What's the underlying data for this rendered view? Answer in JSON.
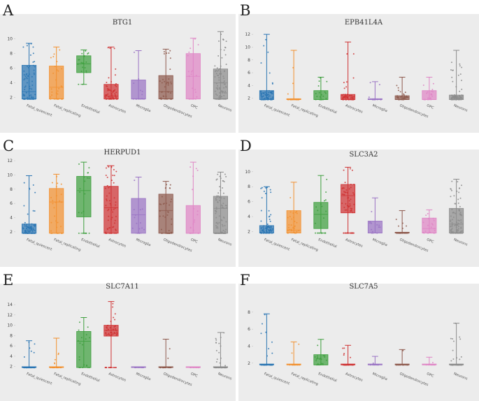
{
  "figure": {
    "background": "#ffffff",
    "panel_background": "#ececec"
  },
  "categories": [
    "Fetal_quiescent",
    "Fetal_replicating",
    "Endothelial",
    "Astrocytes",
    "Microglia",
    "Oligodendrocytes",
    "OPC",
    "Neurons"
  ],
  "colors": [
    "#2a75b3",
    "#f2902f",
    "#3e9f3e",
    "#cf3233",
    "#9a73c4",
    "#8e5a4e",
    "#df85c5",
    "#8c8c8c"
  ],
  "chart_data": [
    {
      "type": "box",
      "letter": "A",
      "title": "BTG1",
      "yticks": [
        2,
        4,
        6,
        8,
        10
      ],
      "ylim": [
        1.2,
        11.5
      ],
      "series": [
        {
          "name": "Fetal_quiescent",
          "min": 1.8,
          "q1": 1.8,
          "median": 2.8,
          "q3": 6.4,
          "max": 9.4,
          "n": 80
        },
        {
          "name": "Fetal_replicating",
          "min": 1.8,
          "q1": 1.8,
          "median": 3.4,
          "q3": 6.3,
          "max": 8.9,
          "n": 30
        },
        {
          "name": "Endothelial",
          "min": 3.8,
          "q1": 5.4,
          "median": 6.6,
          "q3": 7.7,
          "max": 8.5,
          "n": 20
        },
        {
          "name": "Astrocytes",
          "min": 1.8,
          "q1": 1.8,
          "median": 2.2,
          "q3": 3.8,
          "max": 8.9,
          "n": 60
        },
        {
          "name": "Microglia",
          "min": 1.8,
          "q1": 1.8,
          "median": 1.8,
          "q3": 4.4,
          "max": 8.4,
          "n": 14
        },
        {
          "name": "Oligodendrocytes",
          "min": 1.8,
          "q1": 1.8,
          "median": 2.8,
          "q3": 5.0,
          "max": 8.6,
          "n": 40
        },
        {
          "name": "OPC",
          "min": 1.8,
          "q1": 1.8,
          "median": 4.9,
          "q3": 8.0,
          "max": 10.1,
          "n": 20
        },
        {
          "name": "Neurons",
          "min": 1.8,
          "q1": 1.8,
          "median": 4.0,
          "q3": 5.9,
          "max": 11.0,
          "n": 100
        }
      ]
    },
    {
      "type": "box",
      "letter": "B",
      "title": "EPB41L4A",
      "yticks": [
        2,
        4,
        6,
        8,
        10,
        12
      ],
      "ylim": [
        1.2,
        13.0
      ],
      "series": [
        {
          "name": "Fetal_quiescent",
          "min": 1.8,
          "q1": 1.8,
          "median": 1.8,
          "q3": 3.2,
          "max": 12.0,
          "n": 80
        },
        {
          "name": "Fetal_replicating",
          "min": 1.8,
          "q1": 1.8,
          "median": 1.8,
          "q3": 1.8,
          "max": 9.5,
          "n": 30
        },
        {
          "name": "Endothelial",
          "min": 1.8,
          "q1": 1.8,
          "median": 1.8,
          "q3": 3.2,
          "max": 5.3,
          "n": 20
        },
        {
          "name": "Astrocytes",
          "min": 1.8,
          "q1": 1.8,
          "median": 1.8,
          "q3": 2.6,
          "max": 10.8,
          "n": 60
        },
        {
          "name": "Microglia",
          "min": 1.8,
          "q1": 1.8,
          "median": 1.8,
          "q3": 1.8,
          "max": 4.6,
          "n": 14
        },
        {
          "name": "Oligodendrocytes",
          "min": 1.8,
          "q1": 1.8,
          "median": 1.8,
          "q3": 2.4,
          "max": 5.3,
          "n": 40
        },
        {
          "name": "OPC",
          "min": 1.8,
          "q1": 1.8,
          "median": 1.8,
          "q3": 3.2,
          "max": 5.3,
          "n": 20
        },
        {
          "name": "Neurons",
          "min": 1.8,
          "q1": 1.8,
          "median": 1.8,
          "q3": 2.5,
          "max": 9.5,
          "n": 100
        }
      ]
    },
    {
      "type": "box",
      "letter": "C",
      "title": "HERPUD1",
      "yticks": [
        2,
        4,
        6,
        8,
        10,
        12
      ],
      "ylim": [
        1.2,
        12.5
      ],
      "series": [
        {
          "name": "Fetal_quiescent",
          "min": 1.8,
          "q1": 1.8,
          "median": 1.8,
          "q3": 3.1,
          "max": 9.9,
          "n": 80
        },
        {
          "name": "Fetal_replicating",
          "min": 1.8,
          "q1": 1.8,
          "median": 6.2,
          "q3": 8.1,
          "max": 10.1,
          "n": 30
        },
        {
          "name": "Endothelial",
          "min": 1.8,
          "q1": 4.1,
          "median": 7.8,
          "q3": 9.8,
          "max": 11.8,
          "n": 20
        },
        {
          "name": "Astrocytes",
          "min": 1.8,
          "q1": 1.8,
          "median": 5.4,
          "q3": 8.4,
          "max": 11.3,
          "n": 60
        },
        {
          "name": "Microglia",
          "min": 1.8,
          "q1": 1.8,
          "median": 4.4,
          "q3": 6.7,
          "max": 9.7,
          "n": 14
        },
        {
          "name": "Oligodendrocytes",
          "min": 1.8,
          "q1": 1.8,
          "median": 5.0,
          "q3": 7.3,
          "max": 9.1,
          "n": 40
        },
        {
          "name": "OPC",
          "min": 1.8,
          "q1": 1.8,
          "median": 1.8,
          "q3": 5.7,
          "max": 11.8,
          "n": 20
        },
        {
          "name": "Neurons",
          "min": 1.8,
          "q1": 1.8,
          "median": 5.3,
          "q3": 7.0,
          "max": 10.4,
          "n": 100
        }
      ]
    },
    {
      "type": "box",
      "letter": "D",
      "title": "SLC3A2",
      "yticks": [
        2,
        4,
        6,
        8,
        10
      ],
      "ylim": [
        1.2,
        11.2
      ],
      "series": [
        {
          "name": "Fetal_quiescent",
          "min": 1.8,
          "q1": 1.8,
          "median": 1.8,
          "q3": 2.8,
          "max": 8.0,
          "n": 80
        },
        {
          "name": "Fetal_replicating",
          "min": 1.8,
          "q1": 1.8,
          "median": 2.2,
          "q3": 4.8,
          "max": 8.6,
          "n": 30
        },
        {
          "name": "Endothelial",
          "min": 1.8,
          "q1": 2.4,
          "median": 4.3,
          "q3": 5.9,
          "max": 9.5,
          "n": 20
        },
        {
          "name": "Astrocytes",
          "min": 1.8,
          "q1": 4.5,
          "median": 6.8,
          "q3": 8.3,
          "max": 10.6,
          "n": 60
        },
        {
          "name": "Microglia",
          "min": 1.8,
          "q1": 1.8,
          "median": 1.8,
          "q3": 3.4,
          "max": 6.5,
          "n": 14
        },
        {
          "name": "Oligodendrocytes",
          "min": 1.8,
          "q1": 1.8,
          "median": 1.8,
          "q3": 1.8,
          "max": 4.8,
          "n": 40
        },
        {
          "name": "OPC",
          "min": 1.8,
          "q1": 1.8,
          "median": 2.4,
          "q3": 3.8,
          "max": 4.9,
          "n": 20
        },
        {
          "name": "Neurons",
          "min": 1.8,
          "q1": 1.8,
          "median": 3.0,
          "q3": 5.1,
          "max": 9.0,
          "n": 100
        }
      ]
    },
    {
      "type": "box",
      "letter": "E",
      "title": "SLC7A11",
      "yticks": [
        2,
        4,
        6,
        8,
        10,
        12,
        14
      ],
      "ylim": [
        1.0,
        15.5
      ],
      "series": [
        {
          "name": "Fetal_quiescent",
          "min": 1.8,
          "q1": 1.8,
          "median": 1.8,
          "q3": 1.8,
          "max": 7.0,
          "n": 60
        },
        {
          "name": "Fetal_replicating",
          "min": 1.8,
          "q1": 1.8,
          "median": 1.8,
          "q3": 1.8,
          "max": 7.5,
          "n": 30
        },
        {
          "name": "Endothelial",
          "min": 1.8,
          "q1": 1.8,
          "median": 6.9,
          "q3": 8.8,
          "max": 11.5,
          "n": 20
        },
        {
          "name": "Astrocytes",
          "min": 1.8,
          "q1": 7.9,
          "median": 9.0,
          "q3": 10.0,
          "max": 14.6,
          "n": 60
        },
        {
          "name": "Microglia",
          "min": 1.8,
          "q1": 1.8,
          "median": 1.8,
          "q3": 1.8,
          "max": 1.8,
          "n": 10
        },
        {
          "name": "Oligodendrocytes",
          "min": 1.8,
          "q1": 1.8,
          "median": 1.8,
          "q3": 1.8,
          "max": 7.3,
          "n": 30
        },
        {
          "name": "OPC",
          "min": 1.8,
          "q1": 1.8,
          "median": 1.8,
          "q3": 1.8,
          "max": 1.8,
          "n": 12
        },
        {
          "name": "Neurons",
          "min": 1.8,
          "q1": 1.8,
          "median": 1.8,
          "q3": 1.8,
          "max": 8.6,
          "n": 80
        }
      ]
    },
    {
      "type": "box",
      "letter": "F",
      "title": "SLC7A5",
      "yticks": [
        2,
        4,
        6,
        8
      ],
      "ylim": [
        1.0,
        9.3
      ],
      "series": [
        {
          "name": "Fetal_quiescent",
          "min": 1.8,
          "q1": 1.8,
          "median": 1.8,
          "q3": 1.8,
          "max": 7.8,
          "n": 60
        },
        {
          "name": "Fetal_replicating",
          "min": 1.8,
          "q1": 1.8,
          "median": 1.8,
          "q3": 1.8,
          "max": 4.5,
          "n": 20
        },
        {
          "name": "Endothelial",
          "min": 1.8,
          "q1": 1.8,
          "median": 1.8,
          "q3": 3.0,
          "max": 4.8,
          "n": 20
        },
        {
          "name": "Astrocytes",
          "min": 1.8,
          "q1": 1.8,
          "median": 1.8,
          "q3": 1.8,
          "max": 4.1,
          "n": 50
        },
        {
          "name": "Microglia",
          "min": 1.8,
          "q1": 1.8,
          "median": 1.8,
          "q3": 1.8,
          "max": 2.8,
          "n": 10
        },
        {
          "name": "Oligodendrocytes",
          "min": 1.8,
          "q1": 1.8,
          "median": 1.8,
          "q3": 1.8,
          "max": 3.6,
          "n": 30
        },
        {
          "name": "OPC",
          "min": 1.8,
          "q1": 1.8,
          "median": 1.8,
          "q3": 1.8,
          "max": 2.7,
          "n": 10
        },
        {
          "name": "Neurons",
          "min": 1.8,
          "q1": 1.8,
          "median": 1.8,
          "q3": 1.8,
          "max": 6.7,
          "n": 80
        }
      ]
    }
  ]
}
